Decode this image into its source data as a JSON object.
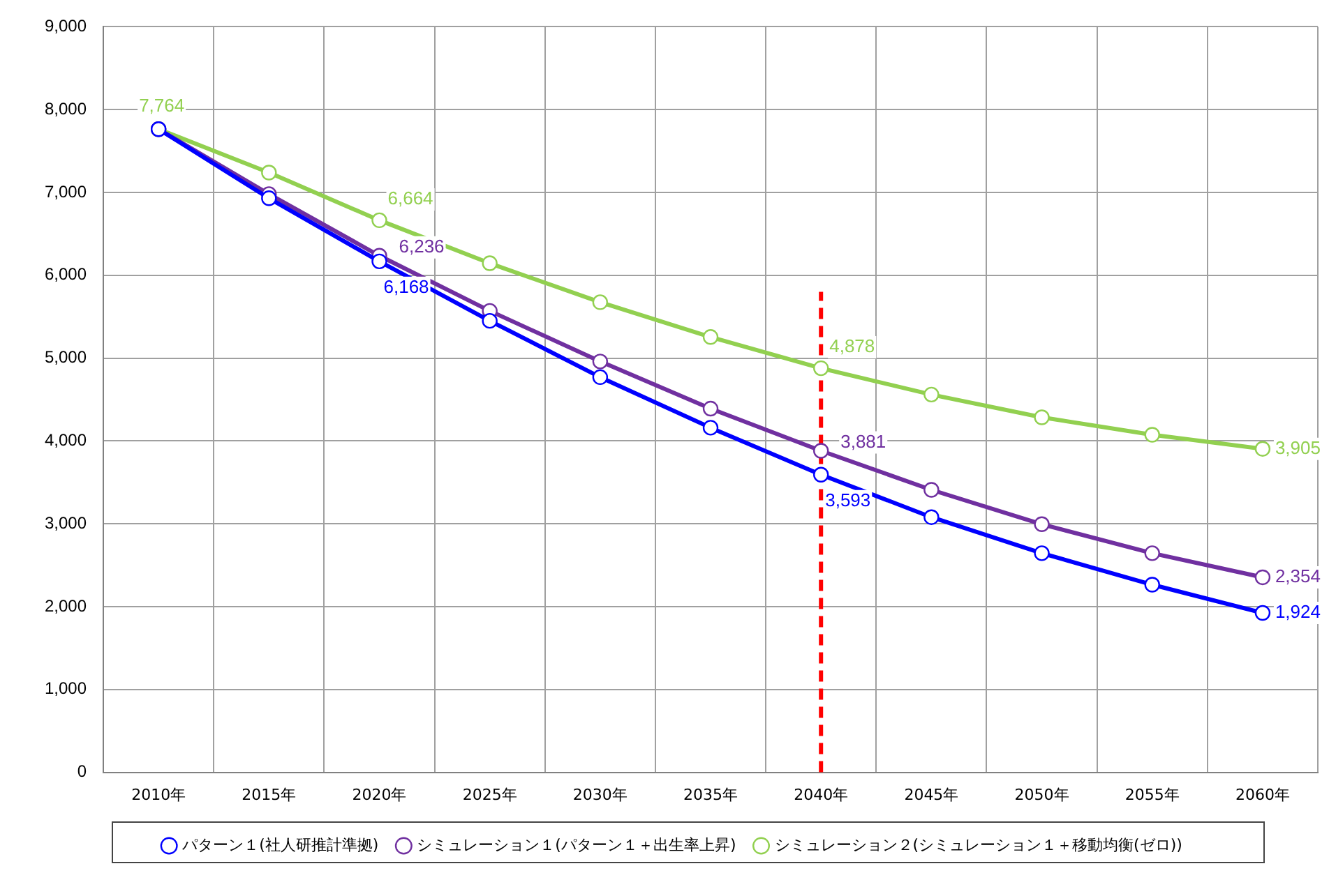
{
  "chart_data": {
    "type": "line",
    "categories": [
      "2010年",
      "2015年",
      "2020年",
      "2025年",
      "2030年",
      "2035年",
      "2040年",
      "2045年",
      "2050年",
      "2055年",
      "2060年"
    ],
    "series": [
      {
        "name": "パターン１(社人研推計準拠)",
        "color": "#0000ff",
        "values": [
          7764,
          6930,
          6168,
          5450,
          4770,
          4160,
          3593,
          3080,
          2645,
          2265,
          1924
        ],
        "value_labels": [
          null,
          null,
          "6,168",
          null,
          null,
          null,
          "3,593",
          null,
          null,
          null,
          "1,924"
        ]
      },
      {
        "name": "シミュレーション１(パターン１＋出生率上昇)",
        "color": "#7030a0",
        "values": [
          7764,
          6980,
          6236,
          5570,
          4960,
          4390,
          3881,
          3410,
          2995,
          2645,
          2354
        ],
        "value_labels": [
          null,
          null,
          "6,236",
          null,
          null,
          null,
          "3,881",
          null,
          null,
          null,
          "2,354"
        ]
      },
      {
        "name": "シミュレーション２(シミュレーション１＋移動均衡(ゼロ))",
        "color": "#92d050",
        "values": [
          7764,
          7240,
          6664,
          6145,
          5675,
          5255,
          4878,
          4560,
          4285,
          4075,
          3905
        ],
        "value_labels": [
          "7,764",
          null,
          "6,664",
          null,
          null,
          null,
          "4,878",
          null,
          null,
          null,
          "3,905"
        ]
      }
    ],
    "ylim": [
      0,
      9000
    ],
    "yticks": [
      0,
      {
        "value": 1000,
        "label": "1,000"
      },
      {
        "value": 2000,
        "label": "2,000"
      },
      {
        "value": 3000,
        "label": "3,000"
      },
      {
        "value": 4000,
        "label": "4,000"
      },
      {
        "value": 5000,
        "label": "5,000"
      },
      {
        "value": 6000,
        "label": "6,000"
      },
      {
        "value": 7000,
        "label": "7,000"
      },
      {
        "value": 8000,
        "label": "8,000"
      },
      {
        "value": 9000,
        "label": "9,000"
      }
    ],
    "grid": true,
    "legend": "bottom",
    "marker": "circle",
    "line_style": "solid",
    "ref_lines": [
      {
        "axis": "x",
        "value": "2040年",
        "color": "#ff0000",
        "line_style": "dashed"
      }
    ]
  }
}
